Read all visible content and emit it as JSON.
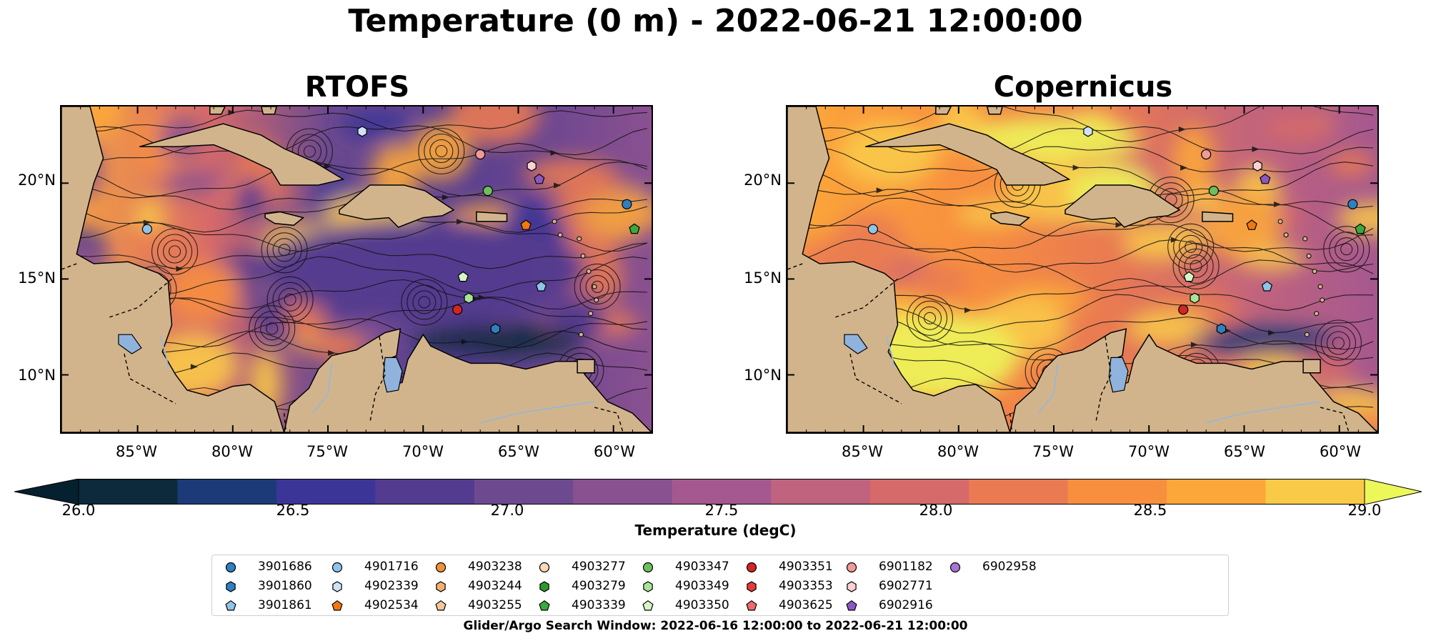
{
  "suptitle": "Temperature (0 m) - 2022-06-21 12:00:00",
  "panels": [
    {
      "title": "RTOFS",
      "style": "warm-offshore"
    },
    {
      "title": "Copernicus",
      "style": "warm-western"
    }
  ],
  "map_extent": {
    "lon": [
      -89,
      -58
    ],
    "lat": [
      7,
      24
    ]
  },
  "lat_ticks": [
    {
      "value": 20,
      "label": "20°N"
    },
    {
      "value": 15,
      "label": "15°N"
    },
    {
      "value": 10,
      "label": "10°N"
    }
  ],
  "lon_ticks": [
    {
      "value": -85,
      "label": "85°W"
    },
    {
      "value": -80,
      "label": "80°W"
    },
    {
      "value": -75,
      "label": "75°W"
    },
    {
      "value": -70,
      "label": "70°W"
    },
    {
      "value": -65,
      "label": "65°W"
    },
    {
      "value": -60,
      "label": "60°W"
    }
  ],
  "colorbar": {
    "label": "Temperature (degC)",
    "range": [
      26.0,
      29.0
    ],
    "ticks": [
      "26.0",
      "26.5",
      "27.0",
      "27.5",
      "28.0",
      "28.5",
      "29.0"
    ],
    "colors": [
      "#0c2a3c",
      "#1d3a78",
      "#3b3597",
      "#533b8f",
      "#6d4a8f",
      "#8a5190",
      "#a5588f",
      "#c0637e",
      "#d66a6a",
      "#e97a52",
      "#f78f3f",
      "#fca73a",
      "#f9c948"
    ],
    "under_color": "#05202e",
    "over_color": "#eef75a"
  },
  "colors": {
    "land": "#d2b48c",
    "lake": "#8fb3dc",
    "river": "#9fb6cc"
  },
  "legend": [
    {
      "id": "3901686",
      "color": "#2f7fc1",
      "marker": "circle"
    },
    {
      "id": "3901860",
      "color": "#2f7fc1",
      "marker": "hexagon"
    },
    {
      "id": "3901861",
      "color": "#8fc3e8",
      "marker": "pentagon"
    },
    {
      "id": "4901716",
      "color": "#8fc3e8",
      "marker": "circle"
    },
    {
      "id": "4902339",
      "color": "#cfe3f5",
      "marker": "hexagon"
    },
    {
      "id": "4902534",
      "color": "#f0780f",
      "marker": "pentagon"
    },
    {
      "id": "4903238",
      "color": "#f0913a",
      "marker": "circle"
    },
    {
      "id": "4903244",
      "color": "#f5b070",
      "marker": "hexagon"
    },
    {
      "id": "4903255",
      "color": "#f5c69a",
      "marker": "pentagon"
    },
    {
      "id": "4903277",
      "color": "#fad8b8",
      "marker": "circle"
    },
    {
      "id": "4903279",
      "color": "#2e9a2e",
      "marker": "hexagon"
    },
    {
      "id": "4903339",
      "color": "#3aab3a",
      "marker": "pentagon"
    },
    {
      "id": "4903347",
      "color": "#6cc05c",
      "marker": "circle"
    },
    {
      "id": "4903349",
      "color": "#a8e39a",
      "marker": "hexagon"
    },
    {
      "id": "4903350",
      "color": "#d4f5c8",
      "marker": "pentagon"
    },
    {
      "id": "4903351",
      "color": "#d42525",
      "marker": "circle"
    },
    {
      "id": "4903353",
      "color": "#e33b3b",
      "marker": "hexagon"
    },
    {
      "id": "4903625",
      "color": "#ef6a6a",
      "marker": "pentagon"
    },
    {
      "id": "6901182",
      "color": "#f09a9a",
      "marker": "circle"
    },
    {
      "id": "6902771",
      "color": "#fbd2d2",
      "marker": "hexagon"
    },
    {
      "id": "6902916",
      "color": "#8a58c0",
      "marker": "pentagon"
    },
    {
      "id": "6902958",
      "color": "#a676d4",
      "marker": "circle"
    }
  ],
  "floats": [
    {
      "id": "4901716",
      "lon": -84.5,
      "lat": 17.6
    },
    {
      "id": "4902339",
      "lon": -73.2,
      "lat": 22.7
    },
    {
      "id": "6901182",
      "lon": -67.0,
      "lat": 21.5
    },
    {
      "id": "6902771",
      "lon": -64.3,
      "lat": 20.9
    },
    {
      "id": "6902916",
      "lon": -63.9,
      "lat": 20.2
    },
    {
      "id": "4903347",
      "lon": -66.6,
      "lat": 19.6
    },
    {
      "id": "3901686",
      "lon": -59.3,
      "lat": 18.9
    },
    {
      "id": "4903339",
      "lon": -58.9,
      "lat": 17.6
    },
    {
      "id": "4902534",
      "lon": -64.6,
      "lat": 17.8
    },
    {
      "id": "4903350",
      "lon": -67.9,
      "lat": 15.1
    },
    {
      "id": "4903349",
      "lon": -67.6,
      "lat": 14.0
    },
    {
      "id": "3901861",
      "lon": -63.8,
      "lat": 14.6
    },
    {
      "id": "4903351",
      "lon": -68.2,
      "lat": 13.4
    },
    {
      "id": "3901860",
      "lon": -66.2,
      "lat": 12.4
    }
  ],
  "search_window": "Glider/Argo Search Window: 2022-06-16 12:00:00 to 2022-06-21 12:00:00"
}
